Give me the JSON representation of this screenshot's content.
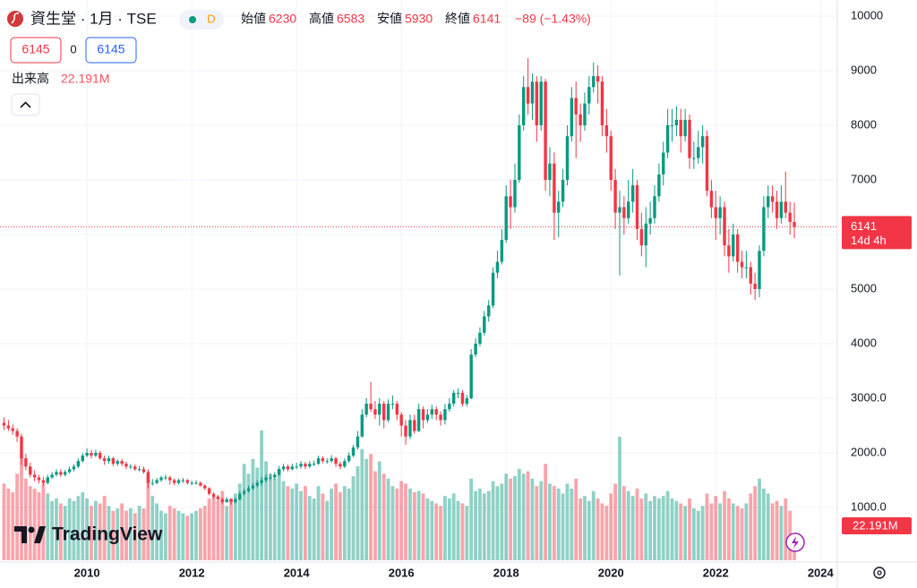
{
  "chart_data": {
    "type": "candlestick",
    "title": "資生堂 · 1月 · TSE",
    "status_badge": "D",
    "header_ohlc": [
      {
        "label": "始値",
        "value": 6230
      },
      {
        "label": "高値",
        "value": 6583
      },
      {
        "label": "安値",
        "value": 5930
      },
      {
        "label": "終値",
        "value": 6141
      }
    ],
    "change": "−89 (−1.43%)",
    "quote_buttons": [
      6145,
      0,
      6145
    ],
    "countdown": "14d 4h",
    "watermark": "TradingView",
    "up_color": "#089981",
    "down_color": "#f23645",
    "grid": true,
    "xlim": [
      2008.34,
      2024.32
    ],
    "xticks": [
      2010,
      2012,
      2014,
      2016,
      2018,
      2020,
      2022,
      2024
    ],
    "ylim": [
      0,
      10295
    ],
    "yticks": [
      {
        "value": 1000,
        "label": "1000.0"
      },
      {
        "value": 2000,
        "label": "2000.0"
      },
      {
        "value": 3000,
        "label": "3000.0"
      },
      4000,
      5000,
      6000,
      7000,
      8000,
      9000,
      10000
    ],
    "x": [
      2008.417,
      2008.5,
      2008.583,
      2008.667,
      2008.75,
      2008.833,
      2008.917,
      2009,
      2009.083,
      2009.167,
      2009.25,
      2009.333,
      2009.417,
      2009.5,
      2009.583,
      2009.667,
      2009.75,
      2009.833,
      2009.917,
      2010,
      2010.083,
      2010.167,
      2010.25,
      2010.333,
      2010.417,
      2010.5,
      2010.583,
      2010.667,
      2010.75,
      2010.833,
      2010.917,
      2011,
      2011.083,
      2011.167,
      2011.25,
      2011.333,
      2011.417,
      2011.5,
      2011.583,
      2011.667,
      2011.75,
      2011.833,
      2011.917,
      2012,
      2012.083,
      2012.167,
      2012.25,
      2012.333,
      2012.417,
      2012.5,
      2012.583,
      2012.667,
      2012.75,
      2012.833,
      2012.917,
      2013,
      2013.083,
      2013.167,
      2013.25,
      2013.333,
      2013.417,
      2013.5,
      2013.583,
      2013.667,
      2013.75,
      2013.833,
      2013.917,
      2014,
      2014.083,
      2014.167,
      2014.25,
      2014.333,
      2014.417,
      2014.5,
      2014.583,
      2014.667,
      2014.75,
      2014.833,
      2014.917,
      2015,
      2015.083,
      2015.167,
      2015.25,
      2015.333,
      2015.417,
      2015.5,
      2015.583,
      2015.667,
      2015.75,
      2015.833,
      2015.917,
      2016,
      2016.083,
      2016.167,
      2016.25,
      2016.333,
      2016.417,
      2016.5,
      2016.583,
      2016.667,
      2016.75,
      2016.833,
      2016.917,
      2017,
      2017.083,
      2017.167,
      2017.25,
      2017.333,
      2017.417,
      2017.5,
      2017.583,
      2017.667,
      2017.75,
      2017.833,
      2017.917,
      2018,
      2018.083,
      2018.167,
      2018.25,
      2018.333,
      2018.417,
      2018.5,
      2018.583,
      2018.667,
      2018.75,
      2018.833,
      2018.917,
      2019,
      2019.083,
      2019.167,
      2019.25,
      2019.333,
      2019.417,
      2019.5,
      2019.583,
      2019.667,
      2019.75,
      2019.833,
      2019.917,
      2020,
      2020.083,
      2020.167,
      2020.25,
      2020.333,
      2020.417,
      2020.5,
      2020.583,
      2020.667,
      2020.75,
      2020.833,
      2020.917,
      2021,
      2021.083,
      2021.167,
      2021.25,
      2021.333,
      2021.417,
      2021.5,
      2021.583,
      2021.667,
      2021.75,
      2021.833,
      2021.917,
      2022,
      2022.083,
      2022.167,
      2022.25,
      2022.333,
      2022.417,
      2022.5,
      2022.583,
      2022.667,
      2022.75,
      2022.833,
      2022.917,
      2023,
      2023.083,
      2023.167,
      2023.25,
      2023.333,
      2023.417,
      2023.5
    ],
    "open": [
      2550,
      2500,
      2450,
      2400,
      2300,
      1900,
      1750,
      1600,
      1550,
      1500,
      1450,
      1550,
      1600,
      1650,
      1600,
      1650,
      1700,
      1750,
      1850,
      1950,
      2000,
      1950,
      2000,
      1900,
      1850,
      1900,
      1800,
      1850,
      1800,
      1750,
      1750,
      1700,
      1700,
      1650,
      1450,
      1450,
      1500,
      1550,
      1550,
      1500,
      1450,
      1500,
      1500,
      1450,
      1450,
      1450,
      1400,
      1350,
      1250,
      1200,
      1150,
      1100,
      1150,
      1100,
      1150,
      1250,
      1300,
      1350,
      1400,
      1450,
      1500,
      1550,
      1550,
      1600,
      1700,
      1750,
      1700,
      1750,
      1750,
      1800,
      1750,
      1800,
      1800,
      1900,
      1850,
      1850,
      1900,
      1800,
      1750,
      1850,
      1950,
      2100,
      2300,
      2700,
      2900,
      2800,
      2700,
      2900,
      2600,
      2900,
      2900,
      2700,
      2500,
      2300,
      2600,
      2400,
      2800,
      2600,
      2700,
      2800,
      2700,
      2600,
      2800,
      2900,
      3100,
      3100,
      2900,
      3000,
      3800,
      4000,
      4200,
      4500,
      4700,
      5300,
      5500,
      5900,
      6700,
      6500,
      7000,
      8000,
      8700,
      8400,
      8800,
      8000,
      8800,
      7000,
      7300,
      6400,
      6600,
      7000,
      7800,
      8500,
      8200,
      8000,
      8400,
      8700,
      8900,
      8800,
      8000,
      7800,
      7000,
      6400,
      6500,
      6300,
      6600,
      6900,
      6100,
      5800,
      6200,
      6300,
      6700,
      7100,
      7500,
      8000,
      8000,
      8100,
      7800,
      8100,
      7400,
      7400,
      7600,
      7800,
      6800,
      6500,
      6300,
      6500,
      5800,
      5600,
      6000,
      5500,
      5400,
      5400,
      5100,
      5000,
      5700,
      6500,
      6700,
      6600,
      6300,
      6600,
      6400,
      6230
    ],
    "high": [
      2650,
      2600,
      2520,
      2450,
      2350,
      1980,
      1820,
      1680,
      1600,
      1560,
      1600,
      1650,
      1700,
      1700,
      1690,
      1750,
      1790,
      1900,
      2000,
      2080,
      2050,
      2060,
      2040,
      1950,
      1950,
      1930,
      1880,
      1890,
      1840,
      1800,
      1790,
      1760,
      1750,
      1700,
      1520,
      1540,
      1580,
      1600,
      1580,
      1530,
      1530,
      1540,
      1520,
      1490,
      1500,
      1480,
      1420,
      1370,
      1280,
      1230,
      1180,
      1190,
      1170,
      1180,
      1290,
      1340,
      1400,
      1450,
      1500,
      1560,
      1600,
      1620,
      1650,
      1760,
      1800,
      1790,
      1800,
      1820,
      1850,
      1830,
      1850,
      1860,
      1950,
      1940,
      1900,
      1960,
      1930,
      1840,
      1900,
      2010,
      2150,
      2400,
      2800,
      3000,
      3300,
      2950,
      3000,
      2950,
      2980,
      3050,
      2950,
      2750,
      2600,
      2700,
      2700,
      2900,
      2850,
      2800,
      2880,
      2850,
      2760,
      2900,
      3000,
      3150,
      3180,
      3150,
      3060,
      3900,
      4100,
      4300,
      4600,
      4800,
      5400,
      5700,
      6100,
      6900,
      7000,
      7300,
      8200,
      8900,
      9230,
      8950,
      8900,
      8900,
      8850,
      7600,
      7500,
      6800,
      7200,
      8000,
      8700,
      8800,
      8400,
      8600,
      8900,
      9150,
      9100,
      8900,
      8300,
      7900,
      7200,
      6800,
      6700,
      7000,
      7200,
      7000,
      6400,
      6500,
      6600,
      6900,
      7300,
      7700,
      8300,
      8300,
      8350,
      8300,
      8300,
      8200,
      7700,
      7900,
      8000,
      7900,
      7000,
      6800,
      6700,
      6600,
      6100,
      6200,
      6100,
      5700,
      5700,
      5500,
      5300,
      5800,
      6700,
      6900,
      6900,
      6800,
      6900,
      7150,
      6600,
      6583
    ],
    "low": [
      2420,
      2400,
      2330,
      2200,
      1780,
      1680,
      1550,
      1480,
      1440,
      1400,
      1420,
      1520,
      1570,
      1560,
      1570,
      1620,
      1660,
      1720,
      1820,
      1920,
      1900,
      1920,
      1870,
      1780,
      1800,
      1760,
      1760,
      1760,
      1700,
      1700,
      1670,
      1660,
      1620,
      1350,
      1400,
      1420,
      1470,
      1500,
      1420,
      1410,
      1420,
      1450,
      1420,
      1410,
      1420,
      1380,
      1320,
      1220,
      1160,
      1110,
      1060,
      1080,
      1050,
      1070,
      1130,
      1220,
      1270,
      1320,
      1370,
      1400,
      1460,
      1500,
      1510,
      1580,
      1660,
      1660,
      1680,
      1700,
      1710,
      1700,
      1720,
      1760,
      1780,
      1810,
      1800,
      1820,
      1740,
      1700,
      1720,
      1820,
      1920,
      2060,
      2280,
      2650,
      2750,
      2620,
      2500,
      2450,
      2560,
      2800,
      2600,
      2300,
      2150,
      2250,
      2350,
      2380,
      2450,
      2550,
      2620,
      2600,
      2500,
      2520,
      2750,
      2850,
      3000,
      2850,
      2850,
      2980,
      3750,
      3950,
      4150,
      4400,
      4650,
      5200,
      5450,
      5850,
      6100,
      6400,
      6950,
      7900,
      8200,
      8100,
      7700,
      7900,
      6800,
      6700,
      5900,
      5950,
      6500,
      6900,
      7700,
      7400,
      7700,
      7900,
      8200,
      8600,
      8400,
      7800,
      7500,
      6800,
      6100,
      5250,
      6000,
      6200,
      6400,
      5900,
      5600,
      5400,
      6000,
      6200,
      6600,
      6900,
      7400,
      7700,
      7800,
      7500,
      7700,
      7200,
      7200,
      7300,
      7300,
      6700,
      6300,
      5900,
      6000,
      5600,
      5300,
      5500,
      5300,
      5200,
      5200,
      4900,
      4800,
      4850,
      5600,
      6300,
      6400,
      6100,
      6200,
      6300,
      6000,
      5930
    ],
    "close": [
      2500,
      2450,
      2400,
      2300,
      1900,
      1750,
      1600,
      1550,
      1500,
      1450,
      1550,
      1600,
      1650,
      1600,
      1650,
      1700,
      1750,
      1850,
      1950,
      2000,
      1950,
      2000,
      1900,
      1850,
      1900,
      1800,
      1850,
      1800,
      1750,
      1750,
      1700,
      1700,
      1650,
      1450,
      1450,
      1500,
      1550,
      1550,
      1500,
      1450,
      1500,
      1500,
      1450,
      1450,
      1450,
      1400,
      1350,
      1250,
      1200,
      1150,
      1100,
      1150,
      1100,
      1150,
      1250,
      1300,
      1350,
      1400,
      1450,
      1500,
      1550,
      1550,
      1600,
      1700,
      1750,
      1700,
      1750,
      1750,
      1800,
      1750,
      1800,
      1800,
      1900,
      1850,
      1850,
      1900,
      1800,
      1750,
      1850,
      1950,
      2100,
      2300,
      2700,
      2900,
      2800,
      2700,
      2900,
      2600,
      2900,
      2900,
      2700,
      2500,
      2300,
      2600,
      2400,
      2800,
      2600,
      2700,
      2800,
      2700,
      2600,
      2800,
      2900,
      3100,
      3100,
      2900,
      3000,
      3800,
      4000,
      4200,
      4500,
      4700,
      5300,
      5500,
      5900,
      6700,
      6500,
      7000,
      8000,
      8700,
      8400,
      8800,
      8000,
      8800,
      7000,
      7300,
      6400,
      6600,
      7000,
      7800,
      8500,
      8200,
      8000,
      8400,
      8700,
      8900,
      8800,
      8000,
      7800,
      7000,
      6400,
      6500,
      6300,
      6600,
      6900,
      6100,
      5800,
      6200,
      6300,
      6700,
      7100,
      7500,
      8000,
      8000,
      8100,
      7800,
      8100,
      7400,
      7400,
      7600,
      7800,
      6800,
      6500,
      6300,
      6500,
      5800,
      5600,
      6000,
      5500,
      5400,
      5400,
      5100,
      5000,
      5700,
      6500,
      6700,
      6600,
      6300,
      6600,
      6400,
      6230,
      6141
    ],
    "volume": {
      "name": "出来高",
      "last_label": "22.191M",
      "values": [
        62,
        58,
        55,
        70,
        85,
        66,
        60,
        58,
        55,
        62,
        54,
        48,
        50,
        46,
        44,
        50,
        48,
        52,
        55,
        50,
        44,
        48,
        46,
        52,
        44,
        40,
        42,
        46,
        40,
        42,
        38,
        44,
        42,
        68,
        52,
        46,
        40,
        38,
        44,
        42,
        40,
        38,
        36,
        38,
        40,
        42,
        44,
        50,
        52,
        48,
        56,
        44,
        50,
        54,
        62,
        78,
        70,
        82,
        75,
        105,
        80,
        70,
        66,
        74,
        64,
        60,
        58,
        62,
        56,
        60,
        52,
        50,
        60,
        54,
        48,
        58,
        62,
        55,
        60,
        58,
        68,
        76,
        90,
        82,
        86,
        72,
        80,
        70,
        66,
        60,
        58,
        64,
        62,
        58,
        55,
        56,
        54,
        50,
        48,
        46,
        44,
        52,
        50,
        54,
        48,
        46,
        44,
        66,
        56,
        58,
        54,
        56,
        64,
        60,
        62,
        70,
        66,
        68,
        74,
        70,
        72,
        66,
        60,
        64,
        78,
        62,
        60,
        58,
        54,
        62,
        58,
        66,
        50,
        52,
        48,
        56,
        50,
        46,
        44,
        54,
        62,
        100,
        60,
        56,
        52,
        58,
        50,
        54,
        48,
        52,
        50,
        52,
        56,
        50,
        48,
        46,
        44,
        50,
        42,
        40,
        44,
        54,
        46,
        52,
        46,
        56,
        50,
        46,
        44,
        42,
        46,
        54,
        60,
        66,
        58,
        54,
        46,
        48,
        44,
        50,
        40,
        22.191
      ]
    }
  }
}
